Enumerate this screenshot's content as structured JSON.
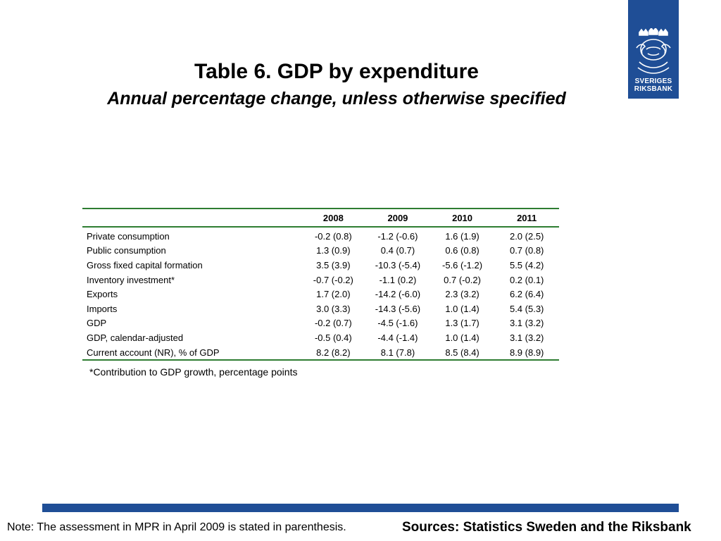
{
  "title": "Table 6. GDP by expenditure",
  "subtitle": "Annual percentage change, unless otherwise specified",
  "logo": {
    "line1": "SVERIGES",
    "line2": "RIKSBANK",
    "icon": "riksbank-crest-icon",
    "color": "#1f4e96"
  },
  "table": {
    "columns": [
      "2008",
      "2009",
      "2010",
      "2011"
    ],
    "rows": [
      {
        "label": "Private consumption",
        "values": [
          "-0.2 (0.8)",
          "-1.2 (-0.6)",
          "1.6 (1.9)",
          "2.0 (2.5)"
        ]
      },
      {
        "label": "Public consumption",
        "values": [
          "1.3 (0.9)",
          "0.4 (0.7)",
          "0.6 (0.8)",
          "0.7 (0.8)"
        ]
      },
      {
        "label": "Gross fixed capital formation",
        "values": [
          "3.5 (3.9)",
          "-10.3 (-5.4)",
          "-5.6 (-1.2)",
          "5.5 (4.2)"
        ]
      },
      {
        "label": "Inventory investment*",
        "values": [
          "-0.7 (-0.2)",
          "-1.1 (0.2)",
          "0.7 (-0.2)",
          "0.2 (0.1)"
        ]
      },
      {
        "label": "Exports",
        "values": [
          "1.7 (2.0)",
          "-14.2 (-6.0)",
          "2.3 (3.2)",
          "6.2 (6.4)"
        ]
      },
      {
        "label": "Imports",
        "values": [
          "3.0 (3.3)",
          "-14.3 (-5.6)",
          "1.0 (1.4)",
          "5.4 (5.3)"
        ]
      },
      {
        "label": "GDP",
        "values": [
          "-0.2 (0.7)",
          "-4.5 (-1.6)",
          "1.3 (1.7)",
          "3.1 (3.2)"
        ]
      },
      {
        "label": "GDP, calendar-adjusted",
        "values": [
          "-0.5 (0.4)",
          "-4.4 (-1.4)",
          "1.0 (1.4)",
          "3.1 (3.2)"
        ]
      },
      {
        "label": "Current account (NR), % of GDP",
        "values": [
          "8.2 (8.2)",
          "8.1 (7.8)",
          "8.5 (8.4)",
          "8.9 (8.9)"
        ]
      }
    ],
    "rule_color": "#2e7d32"
  },
  "footnote": "*Contribution to GDP growth, percentage points",
  "note": "Note: The assessment in MPR in April 2009 is stated in parenthesis.",
  "sources": "Sources: Statistics Sweden and the Riksbank"
}
